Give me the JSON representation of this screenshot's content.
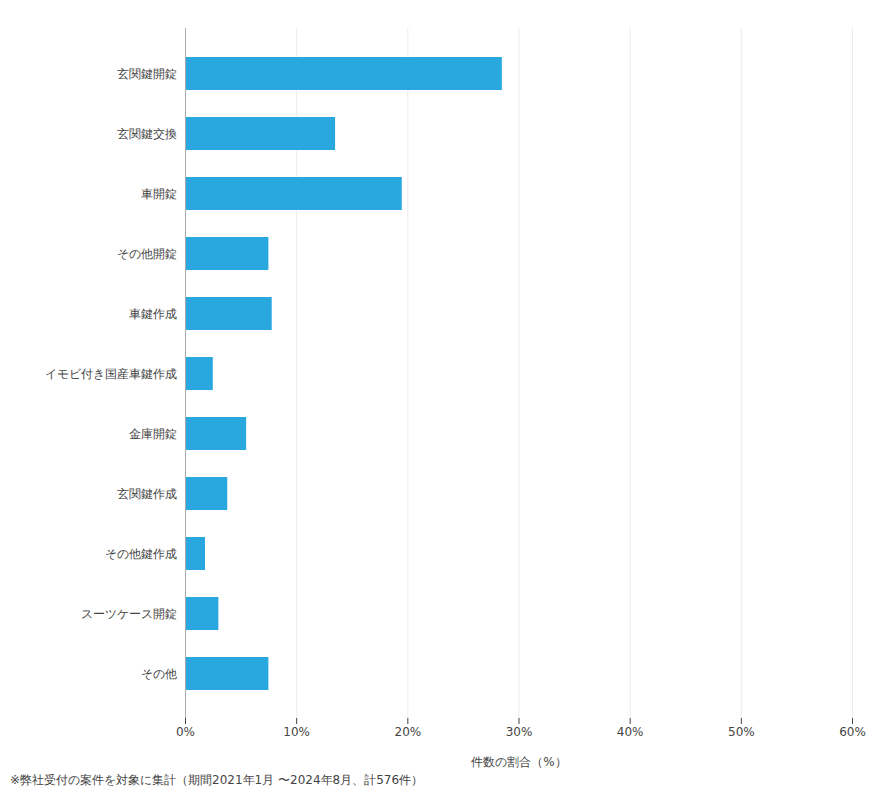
{
  "chart_data": {
    "type": "bar",
    "orientation": "horizontal",
    "categories": [
      "玄関鍵開錠",
      "玄関鍵交換",
      "車開錠",
      "その他開錠",
      "車鍵作成",
      "イモビ付き国産車鍵作成",
      "金庫開錠",
      "玄関鍵作成",
      "その他鍵作成",
      "スーツケース開錠",
      "その他"
    ],
    "values": [
      28.5,
      13.5,
      19.5,
      7.5,
      7.8,
      2.5,
      5.5,
      3.8,
      1.8,
      3.0,
      7.5
    ],
    "color": "#29a8e0",
    "xlabel": "件数の割合（%）",
    "xlim": [
      0,
      60
    ],
    "xticks": [
      {
        "value": 0,
        "label": "0%"
      },
      {
        "value": 10,
        "label": "10%"
      },
      {
        "value": 20,
        "label": "20%"
      },
      {
        "value": 30,
        "label": "30%"
      },
      {
        "value": 40,
        "label": "40%"
      },
      {
        "value": 50,
        "label": "50%"
      },
      {
        "value": 60,
        "label": "60%"
      }
    ],
    "grid": true,
    "caption": "※弊社受付の案件を対象に集計（期間2021年1月 〜2024年8月、計576件）"
  }
}
